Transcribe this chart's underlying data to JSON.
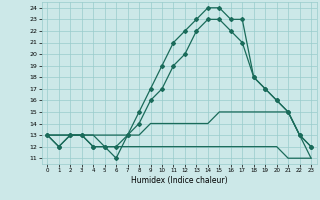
{
  "xlabel": "Humidex (Indice chaleur)",
  "x_ticks": [
    0,
    1,
    2,
    3,
    4,
    5,
    6,
    7,
    8,
    9,
    10,
    11,
    12,
    13,
    14,
    15,
    16,
    17,
    18,
    19,
    20,
    21,
    22,
    23
  ],
  "ylim": [
    10.5,
    24.5
  ],
  "xlim": [
    -0.5,
    23.5
  ],
  "yticks": [
    11,
    12,
    13,
    14,
    15,
    16,
    17,
    18,
    19,
    20,
    21,
    22,
    23,
    24
  ],
  "bg_color": "#cce8e8",
  "grid_color": "#99cccc",
  "line_color": "#1a6b5a",
  "line1_y": [
    13,
    12,
    13,
    13,
    12,
    12,
    11,
    13,
    15,
    17,
    19,
    21,
    22,
    23,
    24,
    24,
    23,
    23,
    18,
    17,
    16,
    15,
    13,
    12
  ],
  "line2_y": [
    13,
    12,
    13,
    13,
    12,
    12,
    12,
    13,
    14,
    16,
    17,
    19,
    20,
    22,
    23,
    23,
    22,
    21,
    18,
    17,
    16,
    15,
    13,
    12
  ],
  "line3_y": [
    13,
    13,
    13,
    13,
    13,
    13,
    13,
    13,
    13,
    14,
    14,
    14,
    14,
    14,
    14,
    15,
    15,
    15,
    15,
    15,
    15,
    15,
    13,
    11
  ],
  "line4_y": [
    13,
    13,
    13,
    13,
    13,
    12,
    12,
    12,
    12,
    12,
    12,
    12,
    12,
    12,
    12,
    12,
    12,
    12,
    12,
    12,
    12,
    11,
    11,
    11
  ]
}
